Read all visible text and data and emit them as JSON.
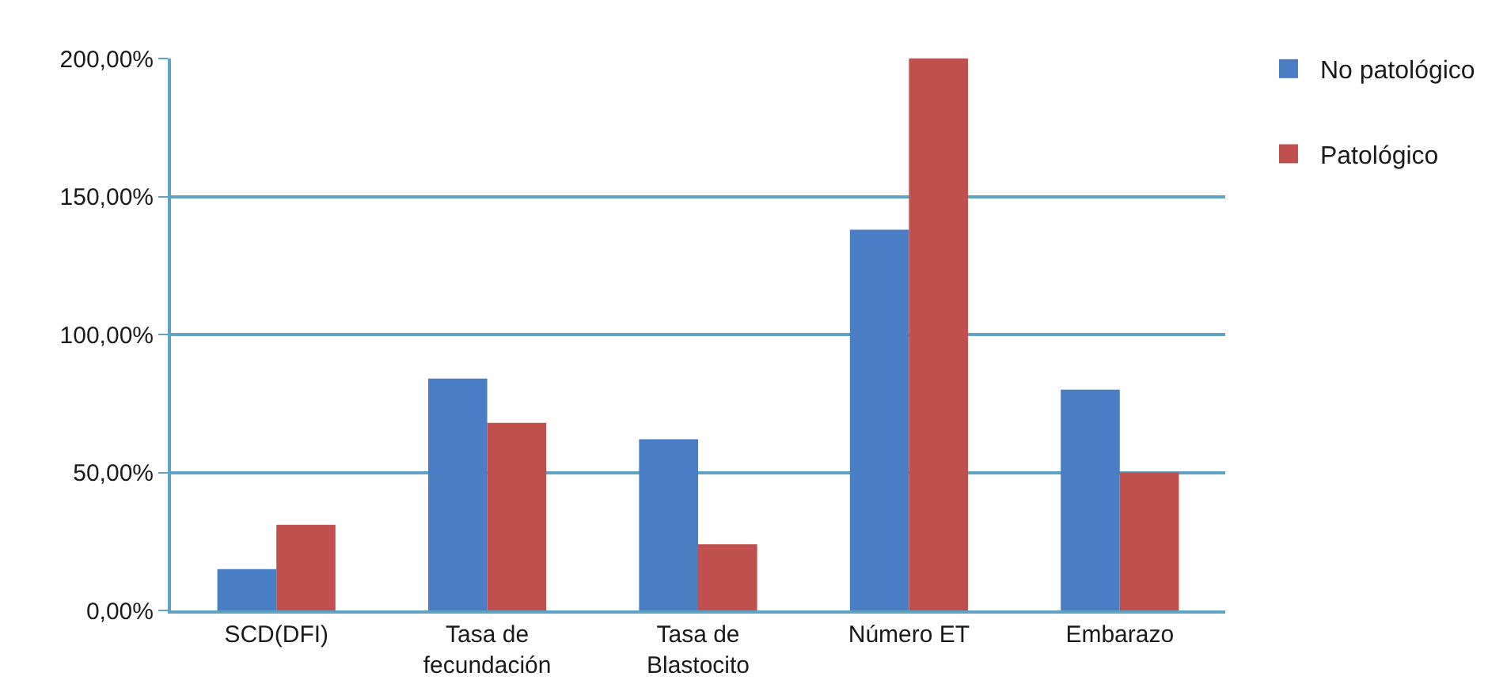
{
  "chart_data": {
    "type": "bar",
    "categories": [
      "SCD(DFI)",
      "Tasa de\nfecundación",
      "Tasa de\nBlastocito",
      "Número ET",
      "Embarazo"
    ],
    "series": [
      {
        "name": "No patológico",
        "color": "#4a7ec4",
        "values": [
          15,
          84,
          62,
          138,
          80
        ]
      },
      {
        "name": "Patológico",
        "color": "#c0504d",
        "values": [
          31,
          68,
          24,
          200,
          50
        ]
      }
    ],
    "ylim": [
      0,
      200
    ],
    "yticks": [
      {
        "value": 0,
        "label": "0,00%"
      },
      {
        "value": 50,
        "label": "50,00%"
      },
      {
        "value": 100,
        "label": "100,00%"
      },
      {
        "value": 150,
        "label": "150,00%"
      },
      {
        "value": 200,
        "label": "200,00%"
      }
    ],
    "grid": "y",
    "legend": "top right"
  }
}
